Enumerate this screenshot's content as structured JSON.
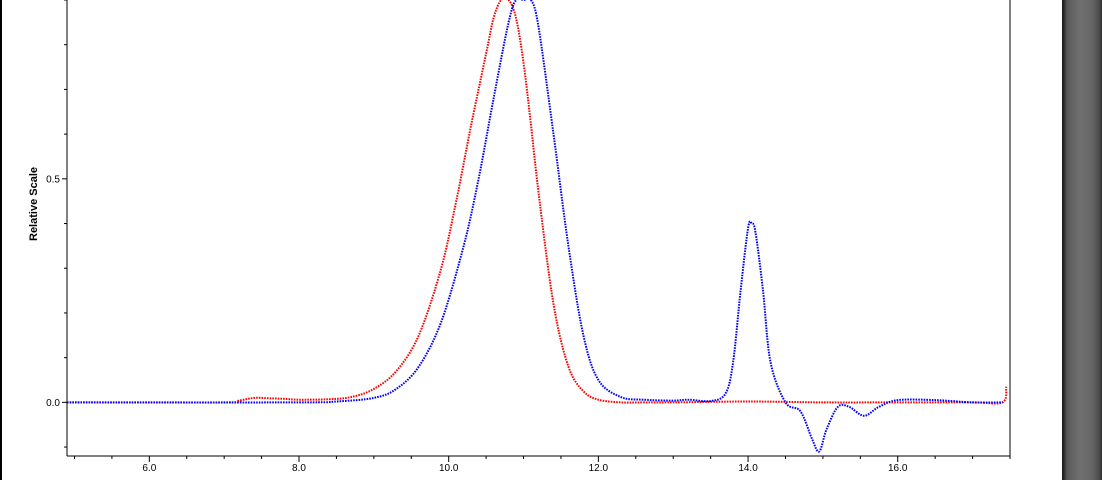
{
  "chart_data": {
    "type": "line",
    "title": "",
    "xlabel": "",
    "ylabel": "Relative Scale",
    "xlim": [
      4.9,
      17.5
    ],
    "ylim": [
      -0.12,
      0.9
    ],
    "x_ticks": [
      6.0,
      8.0,
      10.0,
      12.0,
      14.0,
      16.0
    ],
    "x_tick_labels": [
      "6.0",
      "8.0",
      "10.0",
      "12.0",
      "14.0",
      "16.0"
    ],
    "y_ticks": [
      0.0,
      0.5
    ],
    "y_tick_labels": [
      "0.0",
      "0.5"
    ],
    "grid": false,
    "legend": "none",
    "series": [
      {
        "color": "#ff0000",
        "x": [
          4.9,
          7.0,
          7.2,
          7.4,
          7.6,
          7.8,
          8.0,
          8.4,
          8.7,
          9.0,
          9.3,
          9.6,
          9.9,
          10.1,
          10.3,
          10.5,
          10.6,
          10.7,
          10.8,
          10.9,
          11.0,
          11.1,
          11.2,
          11.4,
          11.6,
          11.8,
          12.0,
          12.3,
          12.6,
          13.0,
          14.0,
          15.0,
          16.0,
          17.0,
          17.4,
          17.45
        ],
        "y": [
          0.0,
          0.0,
          0.004,
          0.01,
          0.009,
          0.008,
          0.006,
          0.007,
          0.012,
          0.03,
          0.07,
          0.15,
          0.3,
          0.45,
          0.62,
          0.78,
          0.86,
          0.92,
          0.9,
          0.86,
          0.76,
          0.62,
          0.47,
          0.22,
          0.08,
          0.025,
          0.006,
          0.0,
          0.0,
          0.0,
          0.002,
          0.0,
          0.0,
          0.0,
          0.0,
          0.035
        ]
      },
      {
        "color": "#0000ff",
        "x": [
          4.9,
          8.0,
          8.5,
          9.0,
          9.3,
          9.6,
          9.9,
          10.2,
          10.4,
          10.6,
          10.8,
          10.9,
          11.0,
          11.1,
          11.2,
          11.4,
          11.6,
          11.8,
          12.0,
          12.3,
          12.6,
          13.0,
          13.2,
          13.5,
          13.7,
          13.8,
          13.9,
          14.0,
          14.05,
          14.1,
          14.2,
          14.3,
          14.5,
          14.7,
          14.85,
          14.95,
          15.05,
          15.2,
          15.35,
          15.55,
          15.75,
          16.0,
          16.5,
          17.0,
          17.4
        ],
        "y": [
          0.0,
          0.0,
          0.002,
          0.01,
          0.03,
          0.08,
          0.18,
          0.35,
          0.5,
          0.68,
          0.85,
          0.92,
          0.95,
          0.92,
          0.84,
          0.6,
          0.35,
          0.15,
          0.05,
          0.012,
          0.006,
          0.004,
          0.006,
          0.003,
          0.02,
          0.09,
          0.25,
          0.39,
          0.4,
          0.38,
          0.25,
          0.09,
          0.0,
          -0.02,
          -0.08,
          -0.11,
          -0.06,
          -0.01,
          -0.01,
          -0.03,
          -0.01,
          0.005,
          0.005,
          0.0,
          0.0
        ]
      }
    ]
  }
}
